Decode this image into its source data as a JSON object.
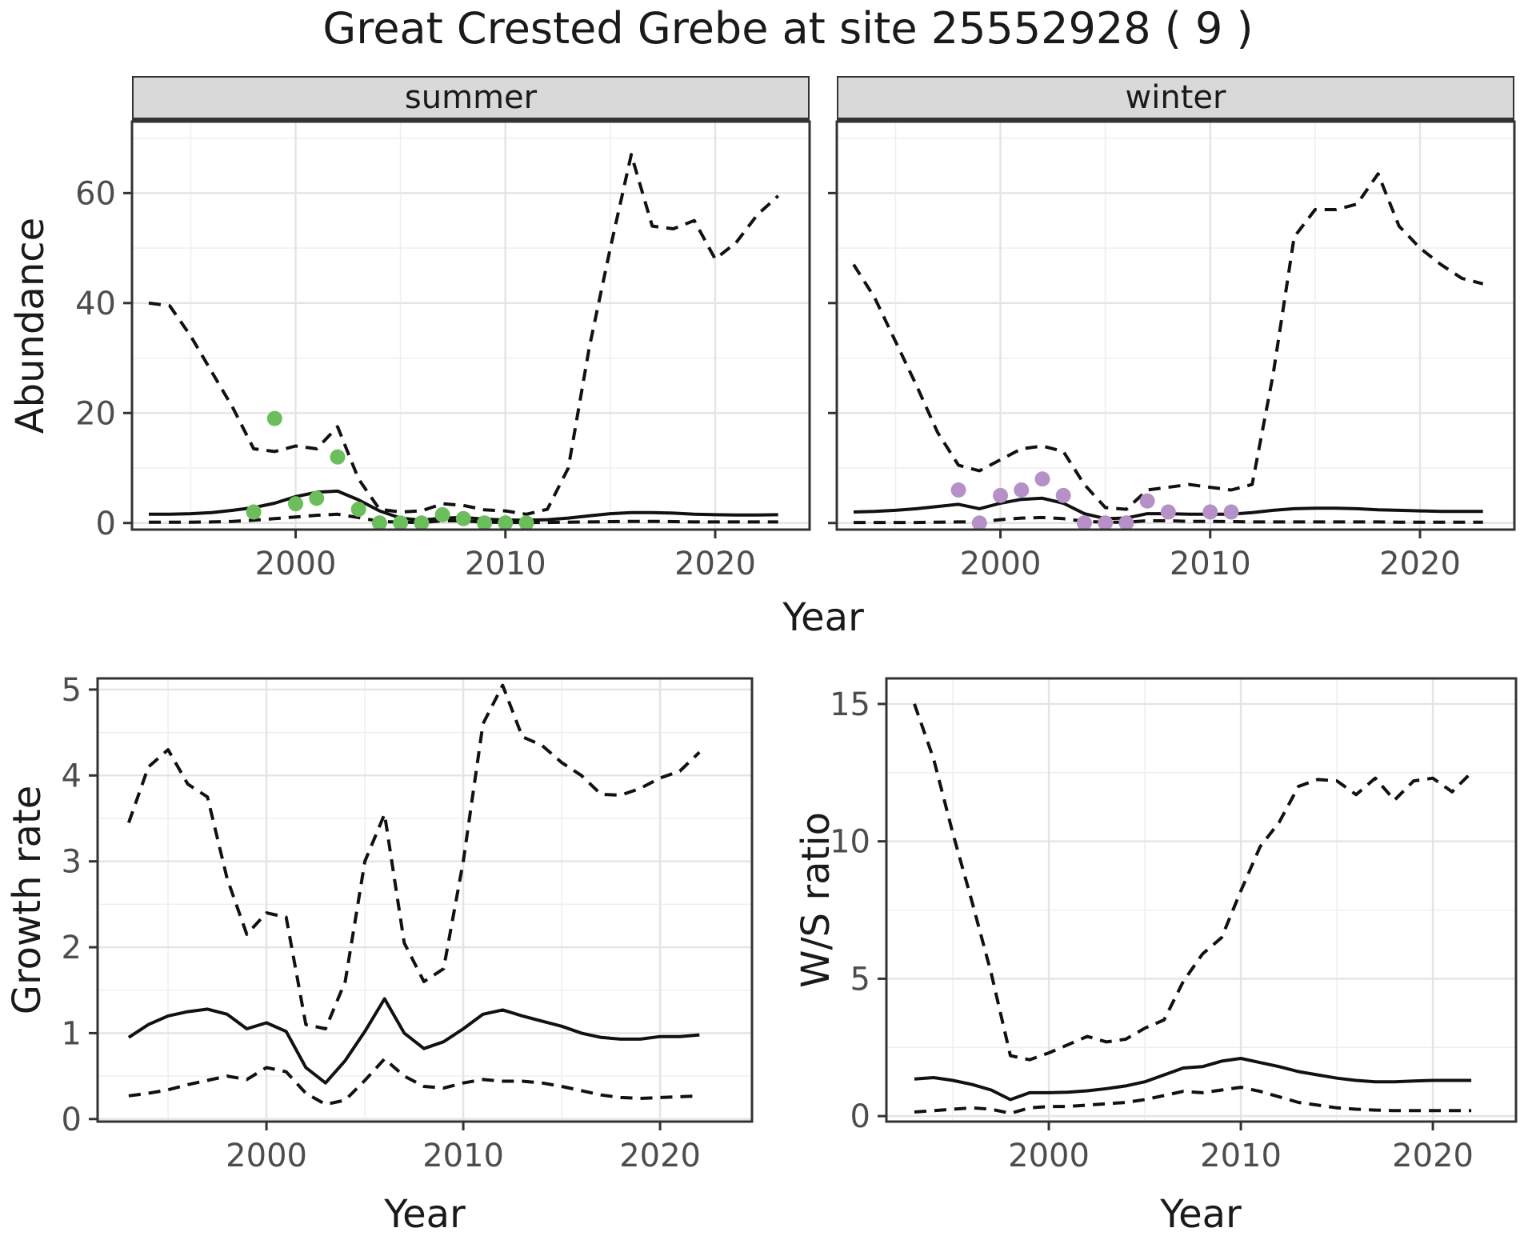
{
  "title": "Great Crested Grebe at site 25552928 ( 9 )",
  "colors": {
    "line": "#111111",
    "grid_major": "#e4e4e4",
    "grid_minor": "#efefef",
    "panel_border": "#333333",
    "strip_fill": "#d9d9d9",
    "tick_label": "#4d4d4d",
    "tick_mark": "#333333",
    "summer_point": "#6cbe5c",
    "winter_point": "#b591c8"
  },
  "chart_data": [
    {
      "id": "abundance_summer",
      "type": "line",
      "facet_label": "summer",
      "xlabel": "Year",
      "ylabel": "Abundance",
      "xlim": [
        1992.2,
        2024.5
      ],
      "ylim": [
        -1.2,
        73.0
      ],
      "x_ticks": [
        2000,
        2010,
        2020
      ],
      "x_minor": [
        1995,
        2005,
        2015
      ],
      "y_ticks": [
        0,
        20,
        40,
        60
      ],
      "y_minor": [
        10,
        30,
        50,
        70
      ],
      "years": [
        1993,
        1994,
        1995,
        1996,
        1997,
        1998,
        1999,
        2000,
        2001,
        2002,
        2003,
        2004,
        2005,
        2006,
        2007,
        2008,
        2009,
        2010,
        2011,
        2012,
        2013,
        2014,
        2015,
        2016,
        2017,
        2018,
        2019,
        2020,
        2021,
        2022,
        2023
      ],
      "series": [
        {
          "name": "upper-ci",
          "style": "dashed",
          "values": [
            40,
            39.5,
            34,
            27.5,
            21,
            13.5,
            13,
            14,
            13.5,
            17.5,
            8,
            2.5,
            2,
            2.2,
            3.5,
            3.2,
            2.4,
            2.2,
            1.6,
            2.5,
            10,
            32,
            50,
            67,
            54,
            53.5,
            55,
            48,
            51,
            56,
            59.5
          ]
        },
        {
          "name": "estimate",
          "style": "solid",
          "values": [
            1.6,
            1.6,
            1.7,
            1.9,
            2.3,
            2.8,
            3.6,
            4.8,
            5.6,
            5.8,
            4.2,
            2.2,
            0.9,
            0.5,
            0.9,
            1.0,
            0.7,
            0.55,
            0.5,
            0.6,
            0.9,
            1.3,
            1.7,
            1.9,
            1.9,
            1.8,
            1.6,
            1.5,
            1.45,
            1.45,
            1.5
          ]
        },
        {
          "name": "lower-ci",
          "style": "dashed",
          "values": [
            0.15,
            0.15,
            0.15,
            0.2,
            0.3,
            0.5,
            0.8,
            1.1,
            1.4,
            1.6,
            1.0,
            0.3,
            0.15,
            0.1,
            0.4,
            0.4,
            0.15,
            0.1,
            0.1,
            0.1,
            0.15,
            0.2,
            0.25,
            0.3,
            0.3,
            0.25,
            0.2,
            0.2,
            0.2,
            0.2,
            0.2
          ]
        }
      ],
      "points": {
        "name": "observed-summer",
        "color": "#6cbe5c",
        "data": [
          [
            1998,
            2
          ],
          [
            1999,
            19
          ],
          [
            2000,
            3.5
          ],
          [
            2001,
            4.5
          ],
          [
            2002,
            12
          ],
          [
            2003,
            2.5
          ],
          [
            2004,
            0
          ],
          [
            2005,
            0
          ],
          [
            2006,
            0
          ],
          [
            2007,
            1.5
          ],
          [
            2008,
            0.8
          ],
          [
            2009,
            0
          ],
          [
            2010,
            0
          ],
          [
            2011,
            0
          ]
        ]
      }
    },
    {
      "id": "abundance_winter",
      "type": "line",
      "facet_label": "winter",
      "xlabel": "Year",
      "ylabel": "Abundance",
      "xlim": [
        1992.2,
        2024.5
      ],
      "ylim": [
        -1.2,
        73.0
      ],
      "x_ticks": [
        2000,
        2010,
        2020
      ],
      "x_minor": [
        1995,
        2005,
        2015
      ],
      "y_ticks": [
        0,
        20,
        40,
        60
      ],
      "y_minor": [
        10,
        30,
        50,
        70
      ],
      "years": [
        1993,
        1994,
        1995,
        1996,
        1997,
        1998,
        1999,
        2000,
        2001,
        2002,
        2003,
        2004,
        2005,
        2006,
        2007,
        2008,
        2009,
        2010,
        2011,
        2012,
        2013,
        2014,
        2015,
        2016,
        2017,
        2018,
        2019,
        2020,
        2021,
        2022,
        2023
      ],
      "series": [
        {
          "name": "upper-ci",
          "style": "dashed",
          "values": [
            47,
            41,
            33,
            25,
            16.5,
            10.5,
            9.5,
            11.5,
            13.5,
            14,
            13,
            7,
            2.8,
            2.5,
            6,
            6.5,
            7,
            6.5,
            6,
            7,
            27,
            52,
            57,
            57,
            58,
            63.5,
            54,
            50,
            47,
            44.5,
            43.5
          ]
        },
        {
          "name": "estimate",
          "style": "solid",
          "values": [
            2.0,
            2.1,
            2.3,
            2.6,
            3.0,
            3.4,
            2.6,
            3.6,
            4.3,
            4.5,
            3.6,
            1.7,
            0.8,
            0.9,
            1.7,
            1.7,
            1.6,
            1.6,
            1.6,
            1.9,
            2.3,
            2.6,
            2.7,
            2.7,
            2.6,
            2.4,
            2.3,
            2.2,
            2.1,
            2.1,
            2.1
          ]
        },
        {
          "name": "lower-ci",
          "style": "dashed",
          "values": [
            0.1,
            0.1,
            0.1,
            0.1,
            0.15,
            0.2,
            0.2,
            0.6,
            0.9,
            1.0,
            0.8,
            0.3,
            0.15,
            0.15,
            0.4,
            0.4,
            0.3,
            0.3,
            0.25,
            0.2,
            0.2,
            0.2,
            0.2,
            0.2,
            0.2,
            0.2,
            0.15,
            0.15,
            0.15,
            0.15,
            0.15
          ]
        }
      ],
      "points": {
        "name": "observed-winter",
        "color": "#b591c8",
        "data": [
          [
            1998,
            6
          ],
          [
            1999,
            0
          ],
          [
            2000,
            5
          ],
          [
            2001,
            6
          ],
          [
            2002,
            8
          ],
          [
            2003,
            5
          ],
          [
            2004,
            0
          ],
          [
            2005,
            0
          ],
          [
            2006,
            0
          ],
          [
            2007,
            4
          ],
          [
            2008,
            2
          ],
          [
            2010,
            2
          ],
          [
            2011,
            2
          ]
        ]
      }
    },
    {
      "id": "growth_rate",
      "type": "line",
      "facet_label": "",
      "xlabel": "Year",
      "ylabel": "Growth rate",
      "xlim": [
        1991.42,
        2024.67
      ],
      "ylim": [
        -0.03,
        5.13
      ],
      "x_ticks": [
        2000,
        2010,
        2020
      ],
      "x_minor": [
        1995,
        2005,
        2015
      ],
      "y_ticks": [
        0,
        1,
        2,
        3,
        4,
        5
      ],
      "y_minor": [
        0.5,
        1.5,
        2.5,
        3.5,
        4.5
      ],
      "years": [
        1993,
        1994,
        1995,
        1996,
        1997,
        1998,
        1999,
        2000,
        2001,
        2002,
        2003,
        2004,
        2005,
        2006,
        2007,
        2008,
        2009,
        2010,
        2011,
        2012,
        2013,
        2014,
        2015,
        2016,
        2017,
        2018,
        2019,
        2020,
        2021,
        2022
      ],
      "series": [
        {
          "name": "upper-ci",
          "style": "dashed",
          "values": [
            3.45,
            4.1,
            4.3,
            3.9,
            3.75,
            2.8,
            2.15,
            2.4,
            2.35,
            1.1,
            1.05,
            1.6,
            3.0,
            3.55,
            2.05,
            1.6,
            1.75,
            3.0,
            4.6,
            5.05,
            4.45,
            4.35,
            4.15,
            4.0,
            3.78,
            3.77,
            3.85,
            3.97,
            4.05,
            4.27
          ]
        },
        {
          "name": "estimate",
          "style": "solid",
          "values": [
            0.95,
            1.1,
            1.2,
            1.25,
            1.28,
            1.22,
            1.05,
            1.12,
            1.02,
            0.6,
            0.42,
            0.68,
            1.02,
            1.4,
            1.0,
            0.82,
            0.9,
            1.05,
            1.22,
            1.27,
            1.2,
            1.14,
            1.08,
            1.0,
            0.95,
            0.93,
            0.93,
            0.96,
            0.96,
            0.98
          ]
        },
        {
          "name": "lower-ci",
          "style": "dashed",
          "values": [
            0.27,
            0.3,
            0.34,
            0.4,
            0.45,
            0.5,
            0.46,
            0.6,
            0.55,
            0.3,
            0.17,
            0.22,
            0.45,
            0.7,
            0.5,
            0.38,
            0.36,
            0.42,
            0.46,
            0.44,
            0.44,
            0.42,
            0.38,
            0.33,
            0.28,
            0.25,
            0.24,
            0.25,
            0.26,
            0.27
          ]
        }
      ],
      "points": null
    },
    {
      "id": "ws_ratio",
      "type": "line",
      "facet_label": "",
      "xlabel": "Year",
      "ylabel": "W/S ratio",
      "xlim": [
        1991.54,
        2024.33
      ],
      "ylim": [
        -0.2,
        15.93
      ],
      "x_ticks": [
        2000,
        2010,
        2020
      ],
      "x_minor": [
        1995,
        2005,
        2015
      ],
      "y_ticks": [
        0,
        5,
        10,
        15
      ],
      "y_minor": [
        2.5,
        7.5,
        12.5
      ],
      "years": [
        1993,
        1994,
        1995,
        1996,
        1997,
        1998,
        1999,
        2000,
        2001,
        2002,
        2003,
        2004,
        2005,
        2006,
        2007,
        2008,
        2009,
        2010,
        2011,
        2012,
        2013,
        2014,
        2015,
        2016,
        2017,
        2018,
        2019,
        2020,
        2021,
        2022
      ],
      "series": [
        {
          "name": "upper-ci",
          "style": "dashed",
          "values": [
            15.0,
            13.0,
            10.3,
            7.8,
            5.2,
            2.2,
            2.05,
            2.3,
            2.6,
            2.9,
            2.7,
            2.8,
            3.2,
            3.5,
            4.9,
            5.9,
            6.5,
            8.2,
            9.8,
            10.7,
            12.0,
            12.25,
            12.2,
            11.7,
            12.3,
            11.5,
            12.2,
            12.3,
            11.8,
            12.5
          ]
        },
        {
          "name": "estimate",
          "style": "solid",
          "values": [
            1.35,
            1.4,
            1.3,
            1.15,
            0.95,
            0.6,
            0.85,
            0.85,
            0.87,
            0.92,
            1.0,
            1.1,
            1.25,
            1.5,
            1.75,
            1.8,
            2.0,
            2.1,
            1.95,
            1.8,
            1.62,
            1.5,
            1.38,
            1.3,
            1.25,
            1.25,
            1.28,
            1.3,
            1.3,
            1.3
          ]
        },
        {
          "name": "lower-ci",
          "style": "dashed",
          "values": [
            0.15,
            0.2,
            0.25,
            0.3,
            0.25,
            0.1,
            0.3,
            0.35,
            0.35,
            0.4,
            0.45,
            0.5,
            0.6,
            0.75,
            0.9,
            0.85,
            0.95,
            1.05,
            0.9,
            0.7,
            0.5,
            0.4,
            0.3,
            0.25,
            0.22,
            0.2,
            0.2,
            0.2,
            0.2,
            0.2
          ]
        }
      ],
      "points": null
    }
  ]
}
